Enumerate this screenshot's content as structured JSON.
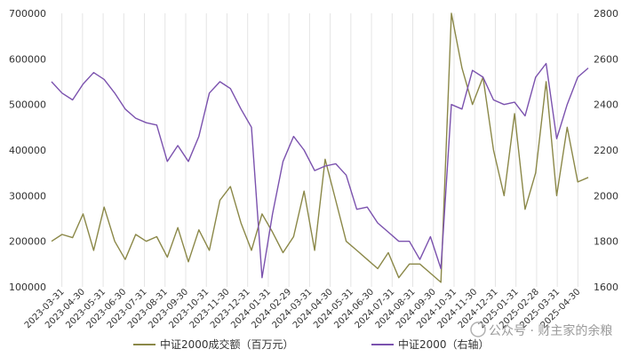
{
  "chart_data": {
    "type": "line",
    "title": "",
    "xlabel": "",
    "ylabel": "",
    "ylim_left": [
      100000,
      700000
    ],
    "ylim_right": [
      1600,
      2800
    ],
    "left_ticks": [
      "700000",
      "600000",
      "500000",
      "400000",
      "300000",
      "200000",
      "100000"
    ],
    "right_ticks": [
      "2800",
      "2600",
      "2400",
      "2200",
      "2000",
      "1800",
      "1600"
    ],
    "grid": "vertical",
    "legend_placement": "bottom",
    "x_ticks": [
      "2023-03-31",
      "2023-04-30",
      "2023-05-31",
      "2023-06-30",
      "2023-07-31",
      "2023-08-31",
      "2023-09-30",
      "2023-10-31",
      "2023-11-30",
      "2023-12-31",
      "2024-01-31",
      "2024-02-29",
      "2024-03-31",
      "2024-04-30",
      "2024-05-31",
      "2024-06-30",
      "2024-07-31",
      "2024-08-31",
      "2024-09-30",
      "2024-10-31",
      "2024-11-30",
      "2024-12-31",
      "2025-01-31",
      "2025-02-28",
      "2025-03-31",
      "2025-04-30"
    ],
    "series": [
      {
        "name": "中证2000成交额（百万元）",
        "axis": "left",
        "color": "#8b8848",
        "values": [
          200000,
          215000,
          208000,
          260000,
          180000,
          275000,
          200000,
          160000,
          215000,
          200000,
          210000,
          165000,
          230000,
          155000,
          225000,
          180000,
          290000,
          320000,
          240000,
          180000,
          260000,
          220000,
          175000,
          210000,
          310000,
          180000,
          380000,
          290000,
          200000,
          180000,
          160000,
          140000,
          175000,
          120000,
          150000,
          150000,
          130000,
          110000,
          700000,
          580000,
          500000,
          560000,
          400000,
          300000,
          480000,
          270000,
          350000,
          550000,
          300000,
          450000,
          330000,
          340000
        ]
      },
      {
        "name": "中证2000（右轴）",
        "axis": "right",
        "color": "#7b52ae",
        "values": [
          2500,
          2450,
          2420,
          2490,
          2540,
          2510,
          2450,
          2380,
          2340,
          2320,
          2310,
          2150,
          2220,
          2150,
          2260,
          2450,
          2500,
          2470,
          2380,
          2300,
          1640,
          1920,
          2150,
          2260,
          2200,
          2110,
          2130,
          2140,
          2090,
          1940,
          1950,
          1880,
          1840,
          1800,
          1800,
          1720,
          1820,
          1680,
          2400,
          2380,
          2550,
          2520,
          2420,
          2400,
          2410,
          2350,
          2520,
          2580,
          2250,
          2400,
          2520,
          2560
        ]
      }
    ]
  },
  "watermark": {
    "text": "公众号 · 财主家的余粮"
  }
}
